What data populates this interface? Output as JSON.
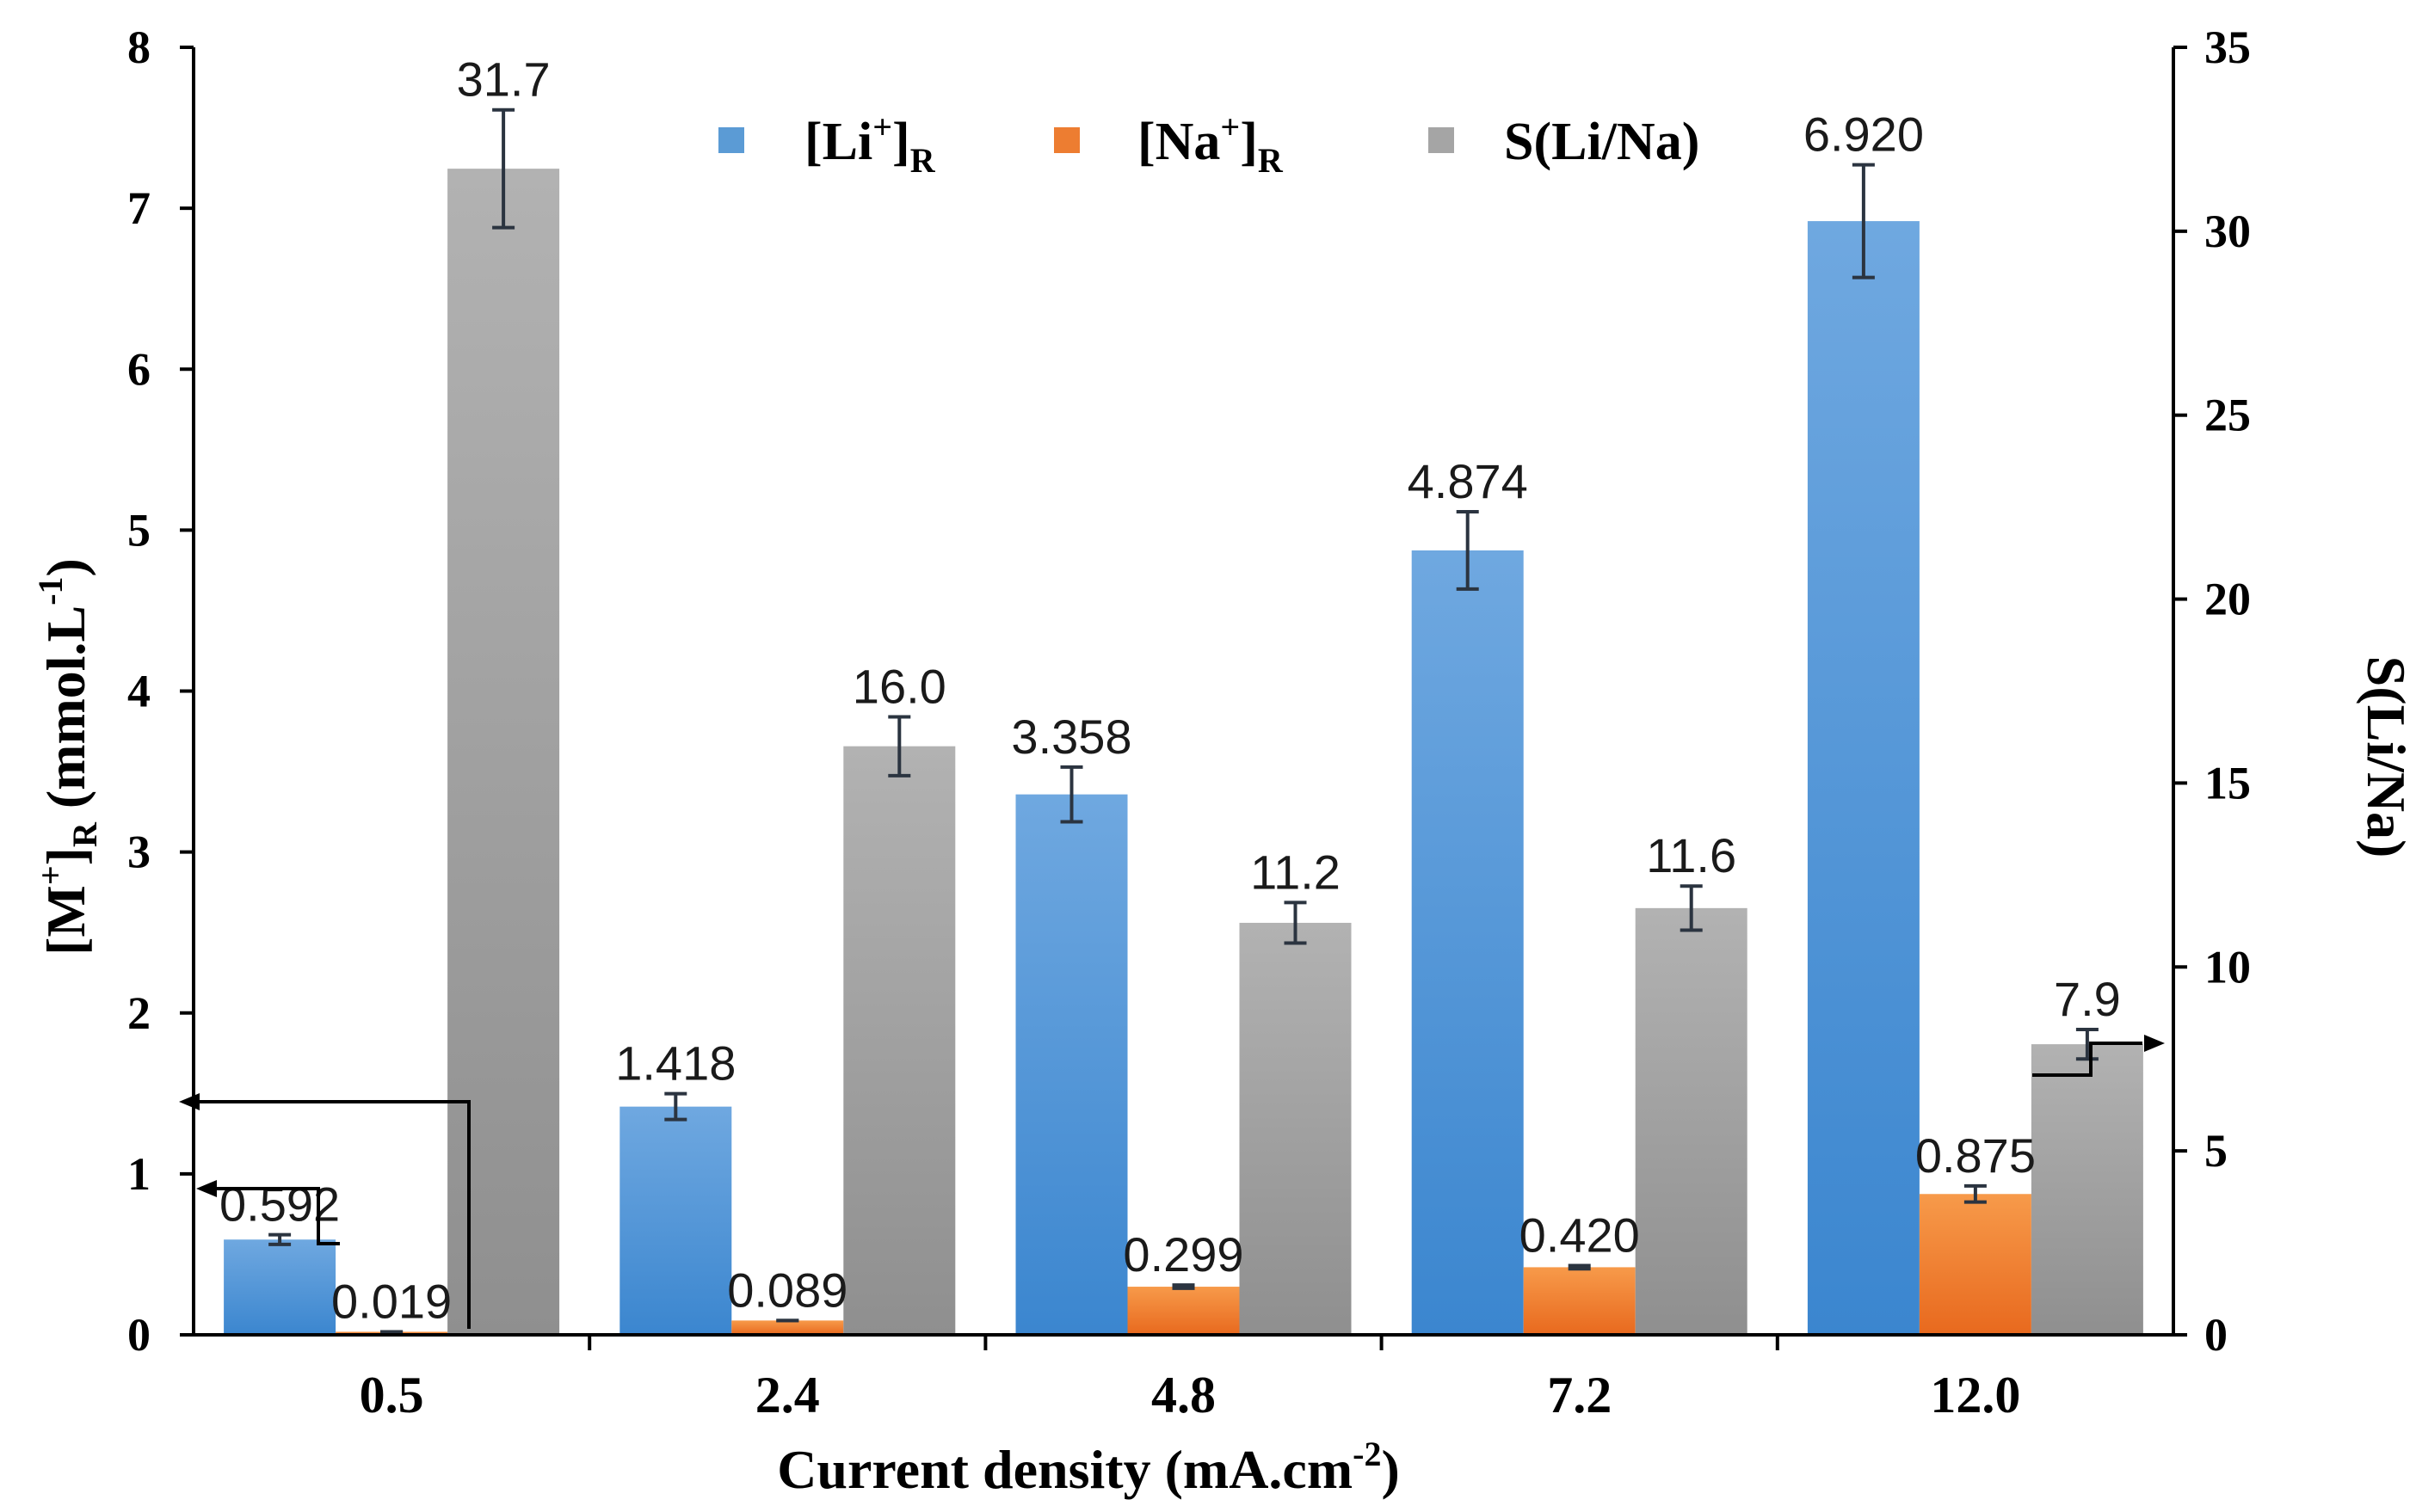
{
  "chart_data": {
    "type": "bar",
    "title": "",
    "xlabel": "Current  density (mA.cm",
    "xlabel_sup": "-2",
    "xlabel_tail": ")",
    "ylabel_left": "[M",
    "ylabel_left_sup": "+",
    "ylabel_left_mid": "]",
    "ylabel_left_sub": "R",
    "ylabel_left_tail": " (mmol.L",
    "ylabel_left_sup2": "-1",
    "ylabel_left_end": ")",
    "ylabel_right": "S(Li/Na)",
    "ylim_left": [
      0,
      8
    ],
    "yticks_left": [
      "0",
      "1",
      "2",
      "3",
      "4",
      "5",
      "6",
      "7",
      "8"
    ],
    "ylim_right": [
      0,
      35
    ],
    "yticks_right": [
      "0",
      "5",
      "10",
      "15",
      "20",
      "25",
      "30",
      "35"
    ],
    "categories": [
      "0.5",
      "2.4",
      "4.8",
      "7.2",
      "12.0"
    ],
    "series": [
      {
        "name": "[Li+]R",
        "legend_main": "[Li",
        "legend_sup": "+",
        "legend_close": "]",
        "legend_sub": "R",
        "axis": "left",
        "color_top": "#6fa8e0",
        "color_bottom": "#3b86cf",
        "values": [
          0.592,
          1.418,
          3.358,
          4.874,
          6.92
        ],
        "errors": [
          0.03,
          0.08,
          0.17,
          0.24,
          0.35
        ],
        "labels": [
          "0.592",
          "1.418",
          "3.358",
          "4.874",
          "6.920"
        ]
      },
      {
        "name": "[Na+]R",
        "legend_main": "[Na",
        "legend_sup": "+",
        "legend_close": "]",
        "legend_sub": "R",
        "axis": "left",
        "color_top": "#f79a4a",
        "color_bottom": "#e8691e",
        "values": [
          0.019,
          0.089,
          0.299,
          0.42,
          0.875
        ],
        "errors": [
          0.0,
          0.0,
          0.01,
          0.01,
          0.05
        ],
        "labels": [
          "0.019",
          "0.089",
          "0.299",
          "0.420",
          "0.875"
        ]
      },
      {
        "name": "S(Li/Na)",
        "legend_main": "S(Li/Na)",
        "axis": "right",
        "color_top": "#b2b2b2",
        "color_bottom": "#8f8f8f",
        "values": [
          31.7,
          16.0,
          11.2,
          11.6,
          7.9
        ],
        "errors": [
          1.6,
          0.8,
          0.55,
          0.6,
          0.4
        ],
        "labels": [
          "31.7",
          "16.0",
          "11.2",
          "11.6",
          "7.9"
        ]
      }
    ],
    "legend_position": "top-center",
    "grid": false
  }
}
